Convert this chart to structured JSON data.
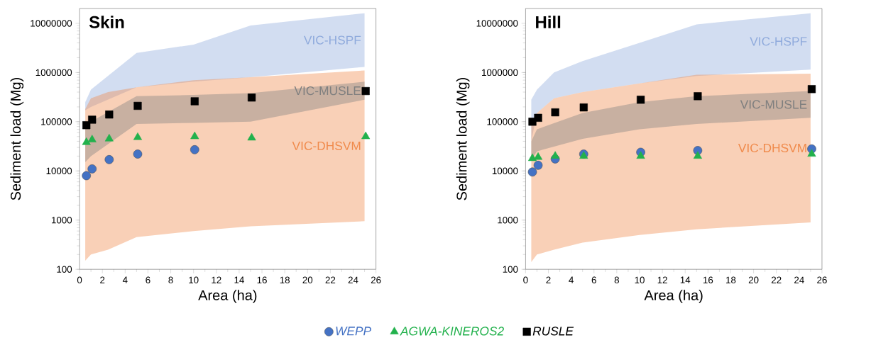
{
  "chart_data": [
    {
      "type": "scatter",
      "title": "Skin",
      "xlabel": "Area (ha)",
      "ylabel": "Sediment load (Mg)",
      "log": "y",
      "grid": false,
      "legend": "bottom",
      "xlim": [
        0,
        26
      ],
      "xticks": [
        0,
        2,
        4,
        6,
        8,
        10,
        12,
        14,
        16,
        18,
        20,
        22,
        24,
        26
      ],
      "ylim": [
        100,
        20000000
      ],
      "yticks": [
        100,
        1000,
        10000,
        100000,
        1000000,
        10000000
      ],
      "series": [
        {
          "name": "VIC-HSPF",
          "type": "area",
          "color": "#8faadc",
          "x": [
            0.5,
            1,
            5,
            10,
            15,
            25
          ],
          "lower": [
            170000,
            200000,
            500000,
            650000,
            800000,
            1300000
          ],
          "upper": [
            250000,
            450000,
            2500000,
            3700000,
            9000000,
            16000000
          ],
          "values": [
            null,
            null,
            null,
            null,
            null,
            null
          ]
        },
        {
          "name": "VIC-DHSVM",
          "type": "area",
          "color": "#f08a4b",
          "x": [
            0.5,
            1,
            2.5,
            5,
            10,
            15,
            25
          ],
          "lower": [
            150,
            200,
            250,
            450,
            600,
            750,
            950
          ],
          "upper": [
            180000,
            300000,
            400000,
            500000,
            700000,
            800000,
            1100000
          ],
          "values": [
            null,
            null,
            null,
            null,
            null,
            null,
            null
          ]
        },
        {
          "name": "VIC-MUSLE",
          "type": "area",
          "color": "#7f7f7f",
          "x": [
            0.5,
            1,
            5,
            10,
            15,
            25
          ],
          "lower": [
            15000,
            20000,
            90000,
            95000,
            100000,
            280000
          ],
          "upper": [
            70000,
            100000,
            330000,
            350000,
            380000,
            650000
          ],
          "values": [
            null,
            null,
            null,
            null,
            null,
            null
          ]
        },
        {
          "name": "WEPP",
          "marker": "circle",
          "color": "#4472c4",
          "x": [
            0.6,
            1.1,
            2.6,
            5.1,
            10.1
          ],
          "values": [
            8000,
            11000,
            17000,
            22000,
            27000
          ]
        },
        {
          "name": "AGWA-KINEROS2",
          "marker": "triangle",
          "color": "#22b14c",
          "x": [
            0.6,
            1.1,
            2.6,
            5.1,
            10.1,
            15.1,
            25.1
          ],
          "values": [
            38000,
            43000,
            45000,
            48000,
            50000,
            47000,
            50000
          ]
        },
        {
          "name": "RUSLE",
          "marker": "square",
          "color": "#000000",
          "x": [
            0.6,
            1.1,
            2.6,
            5.1,
            10.1,
            15.1,
            25.1
          ],
          "values": [
            85000,
            110000,
            140000,
            210000,
            260000,
            310000,
            420000
          ]
        }
      ]
    },
    {
      "type": "scatter",
      "title": "Hill",
      "xlabel": "Area (ha)",
      "ylabel": "Sediment load (Mg)",
      "log": "y",
      "grid": false,
      "xlim": [
        0,
        26
      ],
      "xticks": [
        0,
        2,
        4,
        6,
        8,
        10,
        12,
        14,
        16,
        18,
        20,
        22,
        24,
        26
      ],
      "ylim": [
        100,
        20000000
      ],
      "yticks": [
        100,
        1000,
        10000,
        100000,
        1000000,
        10000000
      ],
      "series": [
        {
          "name": "VIC-HSPF",
          "type": "area",
          "color": "#8faadc",
          "x": [
            0.5,
            1,
            2.5,
            5,
            10,
            15,
            25
          ],
          "lower": [
            40000,
            150000,
            300000,
            400000,
            600000,
            850000,
            1150000
          ],
          "upper": [
            280000,
            450000,
            1000000,
            1700000,
            4000000,
            9500000,
            16000000
          ],
          "values": [
            null,
            null,
            null,
            null,
            null,
            null,
            null
          ]
        },
        {
          "name": "VIC-DHSVM",
          "type": "area",
          "color": "#f08a4b",
          "x": [
            0.5,
            1,
            2.5,
            5,
            10,
            15,
            25
          ],
          "lower": [
            140,
            200,
            250,
            350,
            500,
            650,
            900
          ],
          "upper": [
            100000,
            150000,
            300000,
            400000,
            600000,
            900000,
            950000
          ],
          "values": [
            null,
            null,
            null,
            null,
            null,
            null,
            null
          ]
        },
        {
          "name": "VIC-MUSLE",
          "type": "area",
          "color": "#7f7f7f",
          "x": [
            0.5,
            1,
            5,
            10,
            15,
            25
          ],
          "lower": [
            17000,
            25000,
            45000,
            70000,
            90000,
            120000
          ],
          "upper": [
            40000,
            70000,
            150000,
            250000,
            330000,
            420000
          ],
          "values": [
            null,
            null,
            null,
            null,
            null,
            null
          ]
        },
        {
          "marker": "circle",
          "color": "#4472c4",
          "x": [
            0.6,
            1.1,
            2.6,
            5.1,
            10.1,
            15.1,
            25.1
          ],
          "values": [
            9500,
            13000,
            17500,
            22000,
            24000,
            26000,
            28000
          ]
        },
        {
          "marker": "triangle",
          "color": "#22b14c",
          "x": [
            0.6,
            1.1,
            2.6,
            5.1,
            10.1,
            15.1,
            25.1
          ],
          "values": [
            18000,
            19000,
            20000,
            20000,
            20000,
            20000,
            22000
          ]
        },
        {
          "marker": "square",
          "color": "#000000",
          "x": [
            0.6,
            1.1,
            2.6,
            5.1,
            10.1,
            15.1,
            25.1
          ],
          "values": [
            100000,
            120000,
            155000,
            195000,
            280000,
            330000,
            460000
          ]
        }
      ]
    }
  ]
}
